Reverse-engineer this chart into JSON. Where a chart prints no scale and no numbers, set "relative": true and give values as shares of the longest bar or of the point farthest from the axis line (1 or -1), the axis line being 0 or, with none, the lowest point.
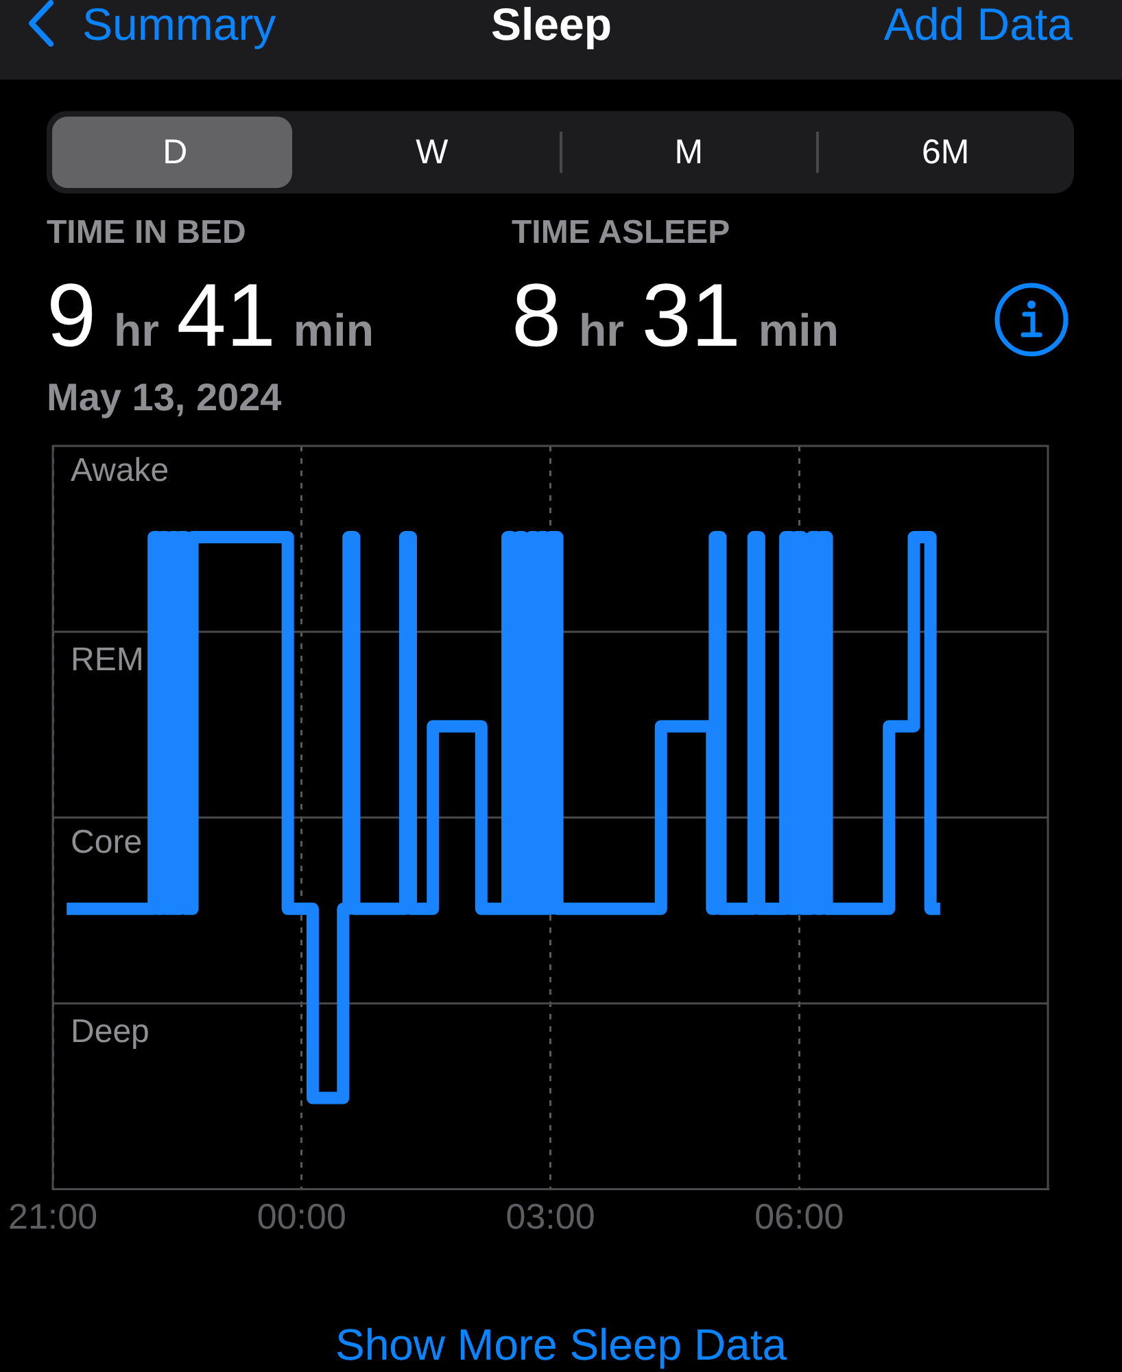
{
  "chart_data": {
    "type": "step",
    "title": "Sleep",
    "subtitle": "May 13, 2024",
    "relative": true,
    "annotations": [
      "Summary",
      "Add Data",
      "D",
      "W",
      "M",
      "6M",
      "TIME IN BED",
      "9 hr 41 min",
      "TIME ASLEEP",
      "8 hr 31 min",
      "Show More Sleep Data",
      "Awake",
      "REM",
      "Core",
      "Deep"
    ],
    "x": [
      "2024-05-12T21:10",
      "2024-05-12T22:13",
      "2024-05-12T22:16",
      "2024-05-12T22:19",
      "2024-05-12T22:22",
      "2024-05-12T22:26",
      "2024-05-12T22:29",
      "2024-05-12T22:32",
      "2024-05-12T22:36",
      "2024-05-12T22:41",
      "2024-05-12T23:50",
      "2024-05-13T00:08",
      "2024-05-13T00:30",
      "2024-05-13T00:34",
      "2024-05-13T00:38",
      "2024-05-13T01:15",
      "2024-05-13T01:19",
      "2024-05-13T01:35",
      "2024-05-13T02:10",
      "2024-05-13T02:29",
      "2024-05-13T02:32",
      "2024-05-13T02:37",
      "2024-05-13T02:40",
      "2024-05-13T02:46",
      "2024-05-13T02:49",
      "2024-05-13T02:53",
      "2024-05-13T02:56",
      "2024-05-13T03:00",
      "2024-05-13T03:05",
      "2024-05-13T04:20",
      "2024-05-13T04:57",
      "2024-05-13T04:59",
      "2024-05-13T05:03",
      "2024-05-13T05:27",
      "2024-05-13T05:31",
      "2024-05-13T05:50",
      "2024-05-13T05:54",
      "2024-05-13T05:58",
      "2024-05-13T06:02",
      "2024-05-13T06:09",
      "2024-05-13T06:13",
      "2024-05-13T06:16",
      "2024-05-13T06:20",
      "2024-05-13T07:05",
      "2024-05-13T07:23",
      "2024-05-13T07:35",
      "2024-05-13T07:42"
    ],
    "values": [
      0.43,
      1,
      0.43,
      1,
      0.43,
      1,
      0.43,
      1,
      0.43,
      1,
      0.43,
      0.14,
      0.43,
      1,
      0.43,
      1,
      0.43,
      0.71,
      0.43,
      1,
      0.43,
      1,
      0.43,
      1,
      0.43,
      1,
      0.43,
      1,
      0.43,
      0.71,
      0.43,
      1,
      0.43,
      1,
      0.43,
      1,
      0.43,
      1,
      0.43,
      1,
      0.43,
      1,
      0.43,
      0.71,
      1,
      0.43,
      0.43
    ],
    "color": "#1a84ff",
    "xlim": [
      "2024-05-12T21:00",
      "2024-05-13T09:00"
    ],
    "xticks": [
      {
        "value": "2024-05-12T21:00",
        "label": "21:00"
      },
      {
        "value": "2024-05-13T00:00",
        "label": "00:00"
      },
      {
        "value": "2024-05-13T03:00",
        "label": "03:00"
      },
      {
        "value": "2024-05-13T06:00",
        "label": "06:00"
      }
    ],
    "grid": true
  }
}
